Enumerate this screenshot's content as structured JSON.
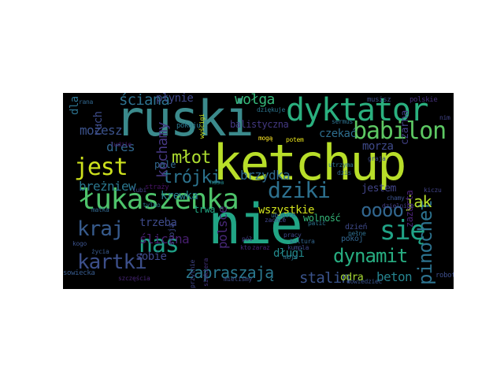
{
  "word_cloud": {
    "background": "#000000",
    "words": [
      {
        "text": "ruski",
        "color": "#3b8a8c",
        "rank": 1
      },
      {
        "text": "ketchup",
        "color": "#b8de29",
        "rank": 2
      },
      {
        "text": "nie",
        "color": "#21a585",
        "rank": 3
      },
      {
        "text": "dyktator",
        "color": "#2ab07f",
        "rank": 4
      },
      {
        "text": "łukaszenka",
        "color": "#4ec36b",
        "rank": 5
      },
      {
        "text": "jest",
        "color": "#cde11d",
        "rank": 6
      },
      {
        "text": "babilon",
        "color": "#5dc863",
        "rank": 7
      },
      {
        "text": "dziki",
        "color": "#2d708e",
        "rank": 8
      },
      {
        "text": "dynamit",
        "color": "#27ad81",
        "rank": 9
      },
      {
        "text": "się",
        "color": "#20a386",
        "rank": 10
      },
      {
        "text": "kartki",
        "color": "#3c4f8a",
        "rank": 11
      },
      {
        "text": "kraj",
        "color": "#375b8d",
        "rank": 12
      },
      {
        "text": "nas",
        "color": "#1fa187",
        "rank": 13
      },
      {
        "text": "pinochet",
        "color": "#2c728e",
        "rank": 14
      },
      {
        "text": "oooo",
        "color": "#31668e",
        "rank": 15
      },
      {
        "text": "trójki",
        "color": "#2c738e",
        "rank": 16
      },
      {
        "text": "ściana",
        "color": "#2d718e",
        "rank": 17
      },
      {
        "text": "młot",
        "color": "#addc30",
        "rank": 18
      },
      {
        "text": "wołga",
        "color": "#35b779",
        "rank": 19
      },
      {
        "text": "zapraszają",
        "color": "#2a788e",
        "rank": 20
      },
      {
        "text": "stalin",
        "color": "#3a538b",
        "rank": 21
      },
      {
        "text": "beton",
        "color": "#25838e",
        "rank": 22
      },
      {
        "text": "jak",
        "color": "#b5de2b",
        "rank": 23
      },
      {
        "text": "breżniew",
        "color": "#2a768e",
        "rank": 24
      },
      {
        "text": "kochamy",
        "color": "#453781",
        "rank": 25
      },
      {
        "text": "polsce",
        "color": "#482878",
        "rank": 26
      },
      {
        "text": "płynie",
        "color": "#3f4788",
        "rank": 27
      },
      {
        "text": "dres",
        "color": "#30688e",
        "rank": 28
      },
      {
        "text": "możesz",
        "color": "#3b528b",
        "rank": 29
      },
      {
        "text": "czekać",
        "color": "#2e6e8e",
        "rank": 30
      },
      {
        "text": "morza",
        "color": "#3e4989",
        "rank": 31
      },
      {
        "text": "trzeba",
        "color": "#3e4a89",
        "rank": 32
      },
      {
        "text": "śliczna",
        "color": "#481f70",
        "rank": 33
      },
      {
        "text": "brzydka",
        "color": "#2f6b8e",
        "rank": 34
      },
      {
        "text": "wszystkie",
        "color": "#d0e11c",
        "rank": 35
      },
      {
        "text": "krewka",
        "color": "#26828e",
        "rank": 36
      },
      {
        "text": "sobie",
        "color": "#3f4889",
        "rank": 37
      },
      {
        "text": "długi",
        "color": "#238a8d",
        "rank": 38
      },
      {
        "text": "jestem",
        "color": "#414487",
        "rank": 39
      },
      {
        "text": "odra",
        "color": "#a8db34",
        "rank": 40
      },
      {
        "text": "czarna",
        "color": "#424086",
        "rank": 41
      },
      {
        "text": "zazarta",
        "color": "#482173",
        "rank": 42
      },
      {
        "text": "balistyczna",
        "color": "#443983",
        "rank": 43
      },
      {
        "text": "wolność",
        "color": "#35b779",
        "rank": 44
      },
      {
        "text": "pale",
        "color": "#31688e",
        "rank": 45
      },
      {
        "text": "dla",
        "color": "#2c728e",
        "rank": 46
      },
      {
        "text": "ruch",
        "color": "#3e4c8a",
        "rank": 47
      },
      {
        "text": "trwa",
        "color": "#22a884",
        "rank": 48
      },
      {
        "text": "straży",
        "color": "#471365",
        "rank": 49
      },
      {
        "text": "sowiecka",
        "color": "#375a8c",
        "rank": 50
      },
      {
        "text": "robotnicza",
        "color": "#3d4e8a",
        "rank": 51
      },
      {
        "text": "polskie",
        "color": "#46317e",
        "rank": 52
      },
      {
        "text": "musisz",
        "color": "#3c4f8a",
        "rank": 53
      },
      {
        "text": "dziękuje",
        "color": "#2b758e",
        "rank": 54
      },
      {
        "text": "pokoju",
        "color": "#2a778e",
        "rank": 55
      },
      {
        "text": "dzień",
        "color": "#3e4a89",
        "rank": 56
      },
      {
        "text": "potem",
        "color": "#eae51a",
        "rank": 57
      },
      {
        "text": "mogą",
        "color": "#fde725",
        "rank": 58
      },
      {
        "text": "rana",
        "color": "#31678e",
        "rank": 59
      },
      {
        "text": "lubi",
        "color": "#433e85",
        "rank": 60
      },
      {
        "text": "matka",
        "color": "#31678e",
        "rank": 61
      },
      {
        "text": "stoją",
        "color": "#3e4989",
        "rank": 62
      },
      {
        "text": "pół",
        "color": "#443b84",
        "rank": 63
      },
      {
        "text": "kto",
        "color": "#472c7a",
        "rank": 64
      },
      {
        "text": "zaraz",
        "color": "#482374",
        "rank": 65
      },
      {
        "text": "mieliśmy",
        "color": "#3d4d8a",
        "rank": 66
      },
      {
        "text": "pokój",
        "color": "#32658e",
        "rank": 67
      },
      {
        "text": "chamy",
        "color": "#3b518b",
        "rank": 68
      },
      {
        "text": "dzielnice",
        "color": "#433d84",
        "rank": 69
      },
      {
        "text": "kiczu",
        "color": "#414487",
        "rank": 70
      },
      {
        "text": "pełne",
        "color": "#2e6f8e",
        "rank": 71
      },
      {
        "text": "kultura",
        "color": "#32658e",
        "rank": 72
      },
      {
        "text": "kumpla",
        "color": "#3f4788",
        "rank": 73
      },
      {
        "text": "palić",
        "color": "#2c728e",
        "rank": 74
      },
      {
        "text": "dowiedzieć",
        "color": "#3a548c",
        "rank": 75
      },
      {
        "text": "pracy",
        "color": "#3f4889",
        "rank": 76
      },
      {
        "text": "moje",
        "color": "#2b748e",
        "rank": 77
      },
      {
        "text": "kogo",
        "color": "#3b528b",
        "rank": 78
      },
      {
        "text": "życia",
        "color": "#38598c",
        "rank": 79
      },
      {
        "text": "szczęścia",
        "color": "#482677",
        "rank": 80
      },
      {
        "text": "tylko",
        "color": "#2a768e",
        "rank": 81
      },
      {
        "text": "hasa",
        "color": "#23898e",
        "rank": 82
      },
      {
        "text": "wyścigi",
        "color": "#cae11f",
        "rank": 83
      },
      {
        "text": "zachce",
        "color": "#404688",
        "rank": 84
      },
      {
        "text": "przytnie",
        "color": "#404688",
        "rank": 85
      },
      {
        "text": "siekiera",
        "color": "#46337f",
        "rank": 86
      },
      {
        "text": "ubogich",
        "color": "#31668e",
        "rank": 87
      },
      {
        "text": "utrzyma",
        "color": "#2e6f8e",
        "rank": 88
      },
      {
        "text": "sermus",
        "color": "#2d718e",
        "rank": 89
      },
      {
        "text": "graja",
        "color": "#3d4e8a",
        "rank": 90
      },
      {
        "text": "dzis",
        "color": "#31668e",
        "rank": 91
      },
      {
        "text": "ludzie",
        "color": "#481a6c",
        "rank": 92
      },
      {
        "text": "nim",
        "color": "#414487",
        "rank": 93
      }
    ]
  }
}
